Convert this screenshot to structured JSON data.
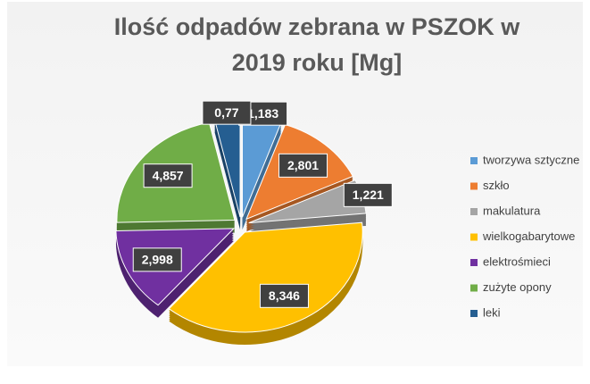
{
  "chart_data": {
    "type": "pie",
    "title": [
      "Ilość odpadów zebrana w PSZOK w",
      "2019 roku [Mg]"
    ],
    "categories": [
      "tworzywa sztyczne",
      "szkło",
      "makulatura",
      "wielkogabarytowe",
      "elektrośmieci",
      "zużyte opony",
      "leki"
    ],
    "values": [
      1.183,
      2.801,
      1.221,
      8.346,
      2.998,
      4.857,
      0.77
    ],
    "value_labels": [
      "1,183",
      "2,801",
      "1,221",
      "8,346",
      "2,998",
      "4,857",
      "0,77"
    ],
    "colors": [
      "#5b9bd5",
      "#ed7d31",
      "#a5a5a5",
      "#ffc000",
      "#7030a0",
      "#70ad47",
      "#255e91"
    ],
    "legend": "right"
  }
}
